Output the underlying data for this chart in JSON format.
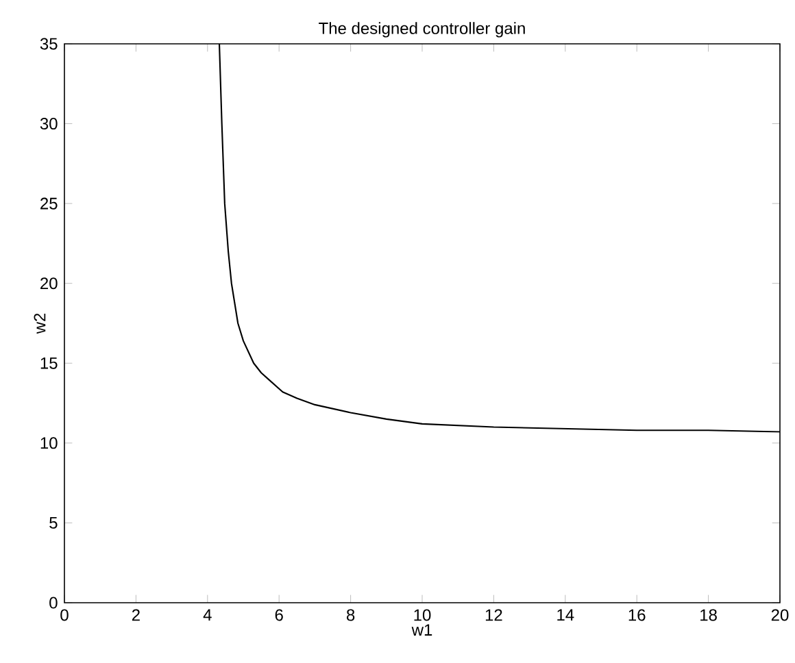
{
  "chart_data": {
    "type": "line",
    "title": "The designed controller gain",
    "xlabel": "w1",
    "ylabel": "w2",
    "series": [
      {
        "color": "#000000",
        "x": [
          4.33,
          4.4,
          4.48,
          4.58,
          4.67,
          4.85,
          5.0,
          5.29,
          5.5,
          5.7,
          6.1,
          6.5,
          7,
          8,
          9,
          10,
          12,
          14,
          16,
          18,
          20
        ],
        "values": [
          35,
          30,
          25,
          22,
          20,
          17.5,
          16.4,
          15,
          14.4,
          14,
          13.2,
          12.8,
          12.4,
          11.9,
          11.5,
          11.2,
          11.0,
          10.9,
          10.8,
          10.8,
          10.7
        ]
      }
    ],
    "xlim": [
      0,
      20
    ],
    "ylim": [
      0,
      35
    ],
    "xticks": [
      0,
      2,
      4,
      6,
      8,
      10,
      12,
      14,
      16,
      18,
      20
    ],
    "yticks": [
      0,
      5,
      10,
      15,
      20,
      25,
      30,
      35
    ],
    "grid": false,
    "marker": "none",
    "line_style": "solid"
  }
}
